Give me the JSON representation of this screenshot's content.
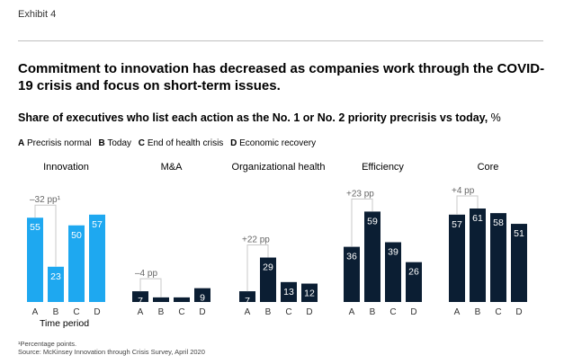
{
  "exhibit": "Exhibit 4",
  "title": "Commitment to innovation has decreased as companies work through the COVID-19 crisis and focus on short-term issues.",
  "subtitle": "Share of executives who list each action as the No. 1 or No. 2 priority precrisis vs today,",
  "subtitle_unit": "%",
  "legend": [
    {
      "key": "A",
      "label": "Precrisis normal"
    },
    {
      "key": "B",
      "label": "Today"
    },
    {
      "key": "C",
      "label": "End of health crisis"
    },
    {
      "key": "D",
      "label": "Economic recovery"
    }
  ],
  "colors": {
    "highlight": "#1ea8f0",
    "dark": "#0b1e33",
    "bracket": "#c8c8c8",
    "label_white": "#ffffff"
  },
  "chart_data": {
    "type": "bar",
    "categories": [
      "A",
      "B",
      "C",
      "D"
    ],
    "xlabel": "Time period",
    "ylabel": "%",
    "groups": [
      {
        "name": "Innovation",
        "values": [
          55,
          23,
          50,
          57
        ],
        "highlight": true,
        "annotation": "–32 pp¹",
        "annotation_between": [
          "A",
          "B"
        ]
      },
      {
        "name": "M&A",
        "values": [
          7,
          3,
          3,
          9
        ],
        "highlight": false,
        "annotation": "–4 pp",
        "annotation_between": [
          "A",
          "B"
        ]
      },
      {
        "name": "Organizational health",
        "values": [
          7,
          29,
          13,
          12
        ],
        "highlight": false,
        "annotation": "+22 pp",
        "annotation_between": [
          "A",
          "B"
        ]
      },
      {
        "name": "Efficiency",
        "values": [
          36,
          59,
          39,
          26
        ],
        "highlight": false,
        "annotation": "+23 pp",
        "annotation_between": [
          "A",
          "B"
        ]
      },
      {
        "name": "Core",
        "values": [
          57,
          61,
          58,
          51
        ],
        "highlight": false,
        "annotation": "+4 pp",
        "annotation_between": [
          "A",
          "B"
        ]
      }
    ]
  },
  "footnotes": {
    "note1": "¹Percentage points.",
    "source": "Source: McKinsey Innovation through Crisis Survey, April 2020"
  }
}
